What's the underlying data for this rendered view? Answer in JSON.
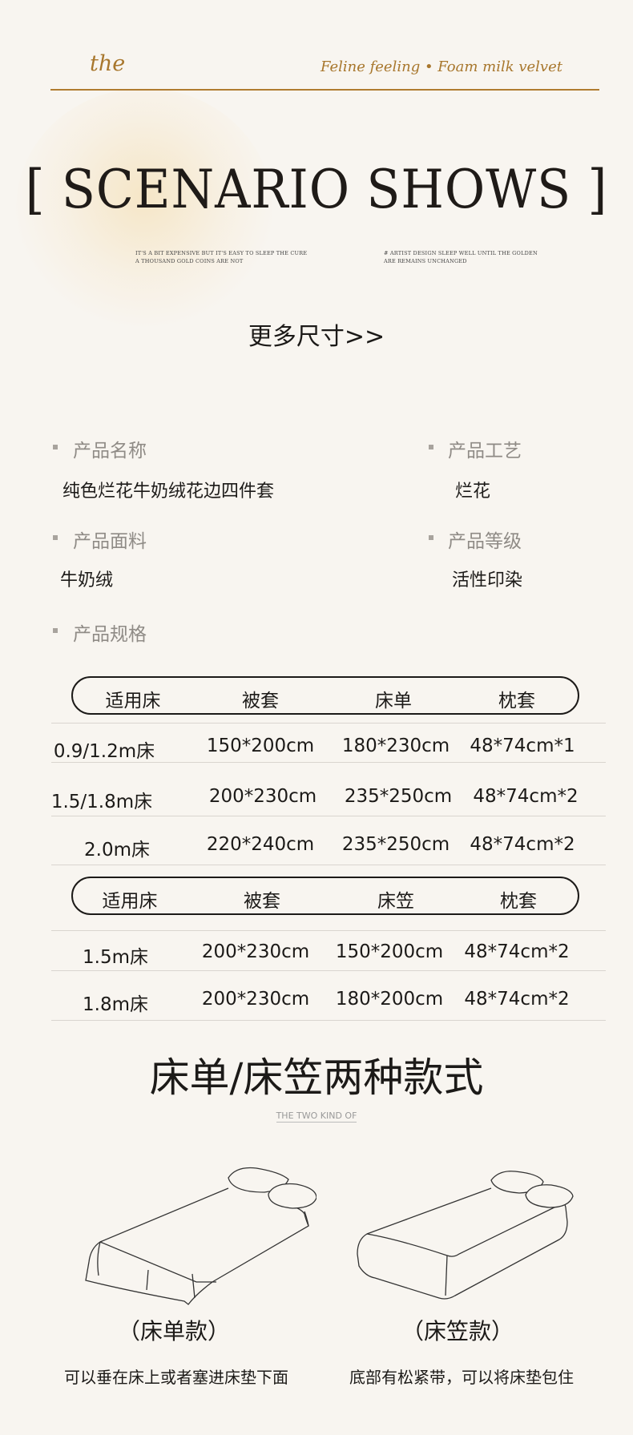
{
  "header": {
    "brand": "the",
    "tagline": "Feline feeling • Foam milk velvet",
    "accent_color": "#a8772d"
  },
  "hero": {
    "title": "[ SCENARIO SHOWS ]",
    "note_left": [
      "IT'S A BIT EXPENSIVE BUT IT'S EASY TO SLEEP THE CURE",
      "A THOUSAND GOLD COINS ARE NOT"
    ],
    "note_right": [
      "# ARTIST DESIGN SLEEP WELL UNTIL THE GOLDEN",
      "ARE REMAINS UNCHANGED"
    ]
  },
  "more_sizes": "更多尺寸>>",
  "specs": {
    "name_label": "产品名称",
    "name_value": "纯色烂花牛奶绒花边四件套",
    "craft_label": "产品工艺",
    "craft_value": "烂花",
    "fabric_label": "产品面料",
    "fabric_value": "牛奶绒",
    "grade_label": "产品等级",
    "grade_value": "活性印染",
    "size_label": "产品规格"
  },
  "table1": {
    "headers": [
      "适用床",
      "被套",
      "床单",
      "枕套"
    ],
    "rows": [
      [
        "0.9/1.2m床",
        "150*200cm",
        "180*230cm",
        "48*74cm*1"
      ],
      [
        "1.5/1.8m床",
        "200*230cm",
        "235*250cm",
        "48*74cm*2"
      ],
      [
        "2.0m床",
        "220*240cm",
        "235*250cm",
        "48*74cm*2"
      ]
    ]
  },
  "table2": {
    "headers": [
      "适用床",
      "被套",
      "床笠",
      "枕套"
    ],
    "rows": [
      [
        "1.5m床",
        "200*230cm",
        "150*200cm",
        "48*74cm*2"
      ],
      [
        "1.8m床",
        "200*230cm",
        "180*200cm",
        "48*74cm*2"
      ]
    ]
  },
  "styles": {
    "heading": "床单/床笠两种款式",
    "subheading": "THE TWO KIND OF",
    "items": [
      {
        "label": "（床单款）",
        "caption": "可以垂在床上或者塞进床垫下面",
        "icon": "flat-sheet-bed-icon"
      },
      {
        "label": "（床笠款）",
        "caption": "底部有松紧带，可以将床垫包住",
        "icon": "fitted-sheet-bed-icon"
      }
    ]
  }
}
